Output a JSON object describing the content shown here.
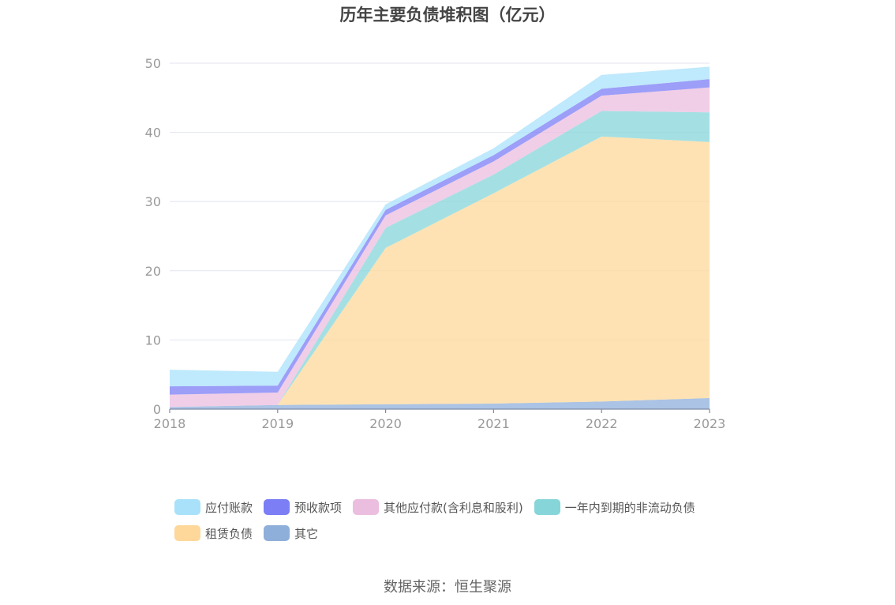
{
  "chart_data": {
    "type": "area",
    "title": "历年主要负债堆积图（亿元）",
    "xlabel": "",
    "ylabel": "",
    "categories": [
      "2018",
      "2019",
      "2020",
      "2021",
      "2022",
      "2023"
    ],
    "ylim": [
      0,
      50
    ],
    "yticks": [
      0,
      10,
      20,
      30,
      40,
      50
    ],
    "stacked": true,
    "grid": true,
    "legend_position": "bottom",
    "series": [
      {
        "name": "其它",
        "color": "#8fafdb",
        "values": [
          0.3,
          0.6,
          0.7,
          0.8,
          1.1,
          1.6
        ]
      },
      {
        "name": "租赁负债",
        "color": "#fdd89a",
        "values": [
          0,
          0,
          22.6,
          30.4,
          38.3,
          37.0
        ]
      },
      {
        "name": "一年内到期的非流动负债",
        "color": "#86d6d9",
        "values": [
          0,
          0,
          2.9,
          2.7,
          3.7,
          4.3
        ]
      },
      {
        "name": "其他应付款(含利息和股利)",
        "color": "#ebbedf",
        "values": [
          1.8,
          1.8,
          1.8,
          1.9,
          2.2,
          3.6
        ]
      },
      {
        "name": "预收款项",
        "color": "#7b7ef5",
        "values": [
          1.2,
          1.0,
          0.8,
          0.9,
          1.0,
          1.2
        ]
      },
      {
        "name": "应付账款",
        "color": "#a9e1fb",
        "values": [
          2.4,
          2.0,
          0.8,
          1.0,
          2.0,
          1.8
        ]
      }
    ]
  },
  "legend": [
    {
      "label": "应付账款",
      "color": "#a9e1fb"
    },
    {
      "label": "预收款项",
      "color": "#7b7ef5"
    },
    {
      "label": "其他应付款(含利息和股利)",
      "color": "#ebbedf"
    },
    {
      "label": "一年内到期的非流动负债",
      "color": "#86d6d9"
    },
    {
      "label": "租赁负债",
      "color": "#fdd89a"
    },
    {
      "label": "其它",
      "color": "#8fafdb"
    }
  ],
  "source": "数据来源：恒生聚源"
}
